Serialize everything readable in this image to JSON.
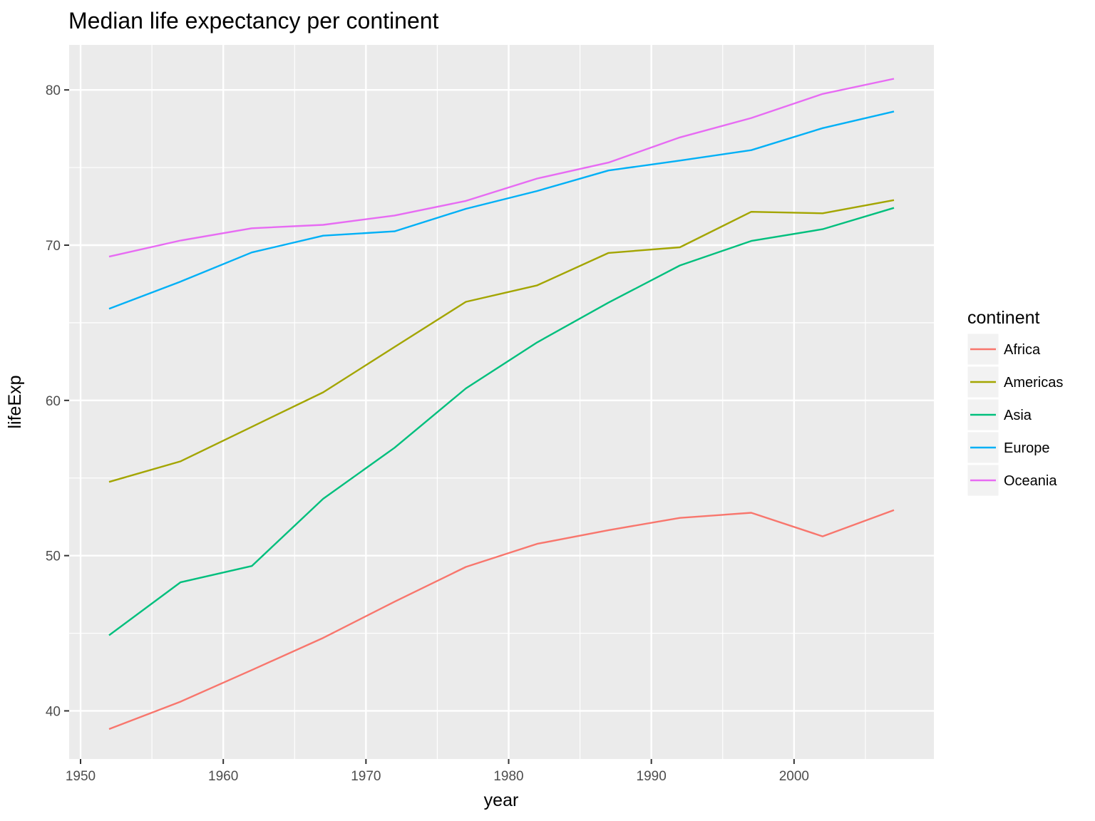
{
  "chart_data": {
    "type": "line",
    "title": "Median life expectancy per continent",
    "xlabel": "year",
    "ylabel": "lifeExp",
    "xlim": [
      1949.2,
      2009.8
    ],
    "ylim": [
      36.9,
      82.9
    ],
    "x_ticks": [
      1950,
      1960,
      1970,
      1980,
      1990,
      2000
    ],
    "y_ticks": [
      40,
      50,
      60,
      70,
      80
    ],
    "grid": true,
    "legend": {
      "title": "continent",
      "position": "right"
    },
    "x": [
      1952,
      1957,
      1962,
      1967,
      1972,
      1977,
      1982,
      1987,
      1992,
      1997,
      2002,
      2007
    ],
    "series": [
      {
        "name": "Africa",
        "color": "#F8766D",
        "values": [
          38.83,
          40.59,
          42.63,
          44.7,
          47.03,
          49.27,
          50.76,
          51.64,
          52.43,
          52.76,
          51.24,
          52.93
        ]
      },
      {
        "name": "Americas",
        "color": "#A3A500",
        "values": [
          54.75,
          56.07,
          58.3,
          60.52,
          63.44,
          66.35,
          67.41,
          69.5,
          69.86,
          72.15,
          72.05,
          72.9
        ]
      },
      {
        "name": "Asia",
        "color": "#00BF7D",
        "values": [
          44.87,
          48.28,
          49.33,
          53.66,
          56.95,
          60.77,
          63.74,
          66.3,
          68.69,
          70.27,
          71.03,
          72.4
        ]
      },
      {
        "name": "Europe",
        "color": "#00B0F6",
        "values": [
          65.9,
          67.65,
          69.53,
          70.61,
          70.89,
          72.34,
          73.49,
          74.81,
          75.45,
          76.12,
          77.54,
          78.61
        ]
      },
      {
        "name": "Oceania",
        "color": "#E76BF3",
        "values": [
          69.26,
          70.3,
          71.09,
          71.31,
          71.91,
          72.85,
          74.29,
          75.32,
          76.94,
          78.19,
          79.74,
          80.72
        ]
      }
    ]
  }
}
